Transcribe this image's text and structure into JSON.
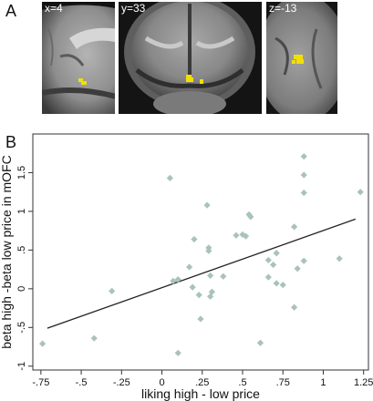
{
  "figure": {
    "panel_a_letter": "A",
    "panel_b_letter": "B",
    "slices": [
      {
        "label": "x=4",
        "view": "sagittal"
      },
      {
        "label": "y=33",
        "view": "coronal"
      },
      {
        "label": "z=-13",
        "view": "axial"
      }
    ],
    "colors": {
      "activation": "#f2e000",
      "scatter_point": "#a9c3b8",
      "regression_line": "#222222"
    }
  },
  "chart_data": {
    "type": "scatter",
    "xlabel": "liking high - low price",
    "ylabel": "beta high -beta low price in mOFC",
    "xlim": [
      -0.8,
      1.28
    ],
    "ylim": [
      -1.05,
      2.0
    ],
    "xticks": [
      -0.75,
      -0.5,
      -0.25,
      0,
      0.25,
      0.5,
      0.75,
      1.0,
      1.25
    ],
    "xtick_labels": [
      "-.75",
      "-.5",
      "-.25",
      "0",
      ".25",
      ".5",
      ".75",
      "1",
      "1.25"
    ],
    "yticks": [
      -1,
      -0.5,
      0,
      0.5,
      1,
      1.5
    ],
    "ytick_labels": [
      "-1",
      "-.5",
      "0",
      ".5",
      "1",
      "1.5"
    ],
    "regression": {
      "x": [
        -0.71,
        1.2
      ],
      "y": [
        -0.51,
        0.9
      ]
    },
    "points": [
      {
        "x": -0.74,
        "y": -0.71
      },
      {
        "x": -0.42,
        "y": -0.64
      },
      {
        "x": -0.31,
        "y": -0.03
      },
      {
        "x": 0.05,
        "y": 1.43
      },
      {
        "x": 0.07,
        "y": 0.1
      },
      {
        "x": 0.1,
        "y": 0.12
      },
      {
        "x": 0.1,
        "y": -0.83
      },
      {
        "x": 0.17,
        "y": 0.28
      },
      {
        "x": 0.19,
        "y": 0.02
      },
      {
        "x": 0.2,
        "y": 0.64
      },
      {
        "x": 0.23,
        "y": -0.08
      },
      {
        "x": 0.24,
        "y": -0.39
      },
      {
        "x": 0.28,
        "y": 1.08
      },
      {
        "x": 0.29,
        "y": 0.53
      },
      {
        "x": 0.29,
        "y": 0.49
      },
      {
        "x": 0.3,
        "y": 0.17
      },
      {
        "x": 0.31,
        "y": -0.04
      },
      {
        "x": 0.3,
        "y": -0.1
      },
      {
        "x": 0.38,
        "y": 0.16
      },
      {
        "x": 0.46,
        "y": 0.69
      },
      {
        "x": 0.5,
        "y": 0.7
      },
      {
        "x": 0.52,
        "y": 0.68
      },
      {
        "x": 0.54,
        "y": 0.96
      },
      {
        "x": 0.55,
        "y": 0.93
      },
      {
        "x": 0.61,
        "y": -0.7
      },
      {
        "x": 0.66,
        "y": 0.37
      },
      {
        "x": 0.66,
        "y": 0.15
      },
      {
        "x": 0.69,
        "y": 0.31
      },
      {
        "x": 0.71,
        "y": 0.46
      },
      {
        "x": 0.71,
        "y": 0.07
      },
      {
        "x": 0.75,
        "y": 0.05
      },
      {
        "x": 0.82,
        "y": 0.8
      },
      {
        "x": 0.82,
        "y": -0.24
      },
      {
        "x": 0.84,
        "y": 0.26
      },
      {
        "x": 0.88,
        "y": 1.71
      },
      {
        "x": 0.88,
        "y": 1.47
      },
      {
        "x": 0.88,
        "y": 1.24
      },
      {
        "x": 0.88,
        "y": 0.36
      },
      {
        "x": 1.1,
        "y": 0.39
      },
      {
        "x": 1.23,
        "y": 1.25
      }
    ],
    "grid": false
  }
}
